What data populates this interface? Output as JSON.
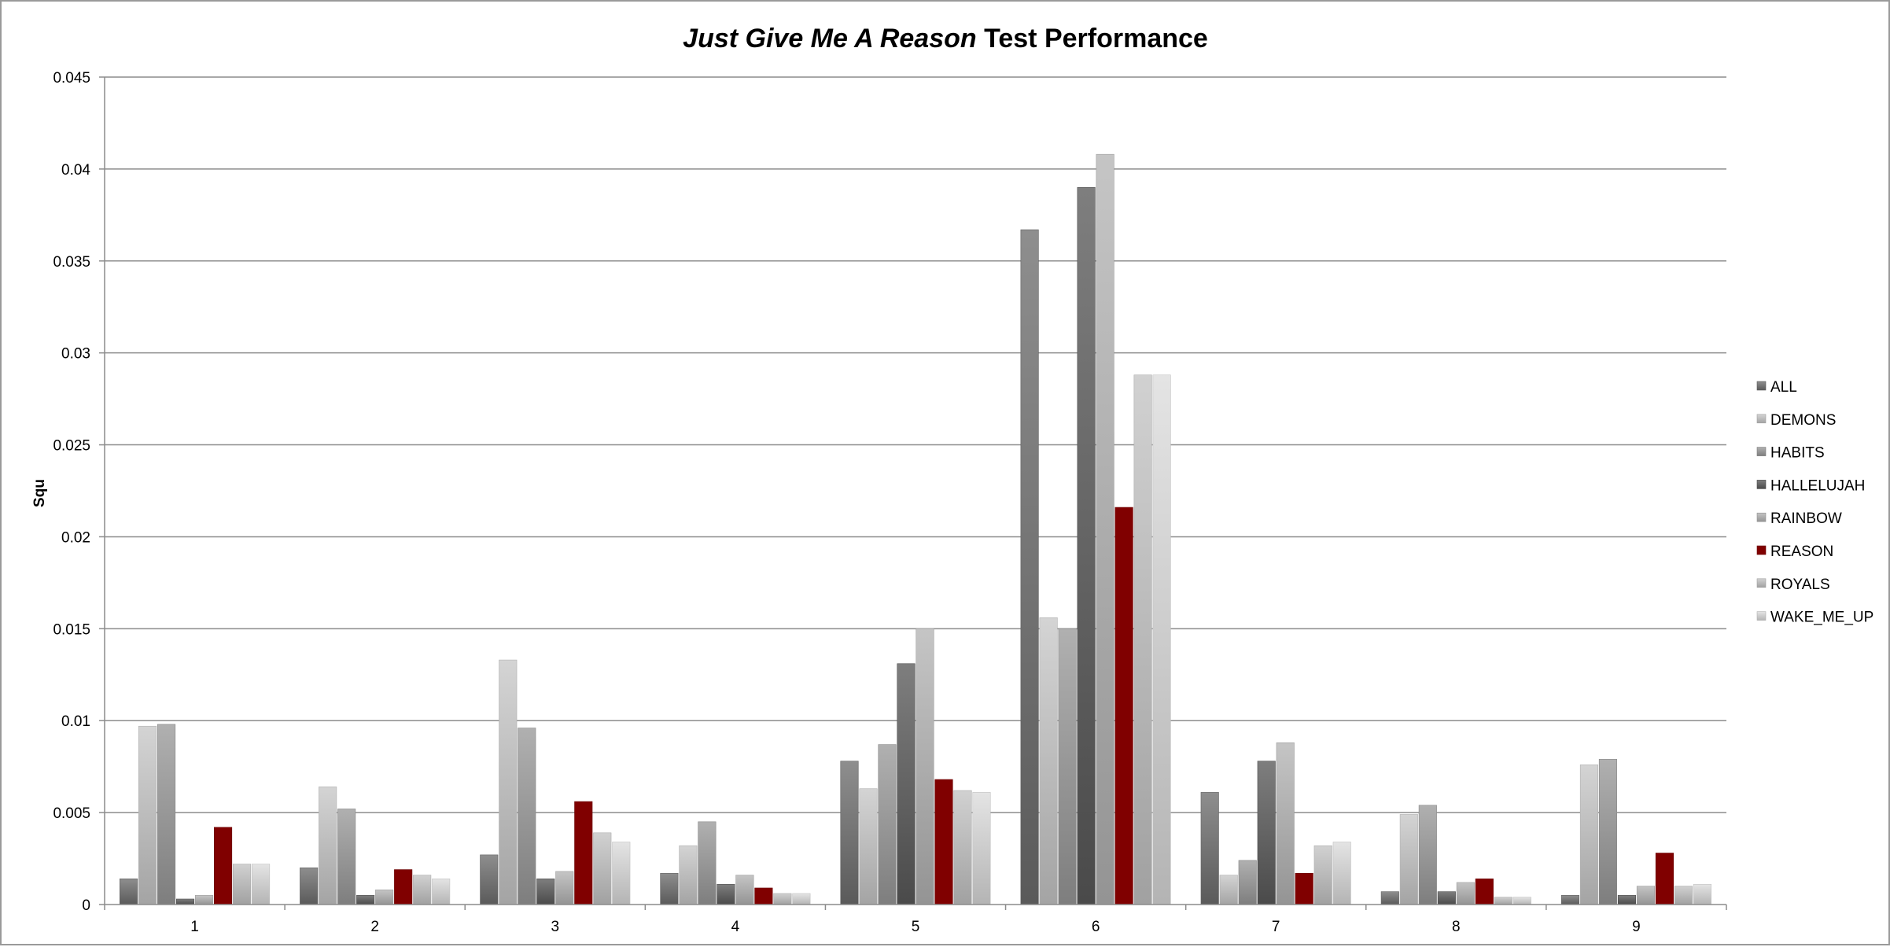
{
  "chart_data": {
    "type": "bar",
    "title_italic": "Just Give Me A Reason",
    "title_rest": " Test Performance",
    "xlabel": "",
    "ylabel": "Squ",
    "ylim": [
      0,
      0.045
    ],
    "y_ticks": [
      "0",
      "0.005",
      "0.01",
      "0.015",
      "0.02",
      "0.025",
      "0.03",
      "0.035",
      "0.04",
      "0.045"
    ],
    "categories": [
      "1",
      "2",
      "3",
      "4",
      "5",
      "6",
      "7",
      "8",
      "9"
    ],
    "grid": true,
    "legend_position": "right",
    "series": [
      {
        "name": "ALL",
        "color": "#6e6e6e",
        "values": [
          0.0014,
          0.002,
          0.0027,
          0.0017,
          0.0078,
          0.0367,
          0.0061,
          0.0007,
          0.0005
        ]
      },
      {
        "name": "DEMONS",
        "color": "#c8c8c8",
        "values": [
          0.0097,
          0.0064,
          0.0133,
          0.0032,
          0.0063,
          0.0156,
          0.0016,
          0.0049,
          0.0076
        ]
      },
      {
        "name": "HABITS",
        "color": "#9a9a9a",
        "values": [
          0.0098,
          0.0052,
          0.0096,
          0.0045,
          0.0087,
          0.015,
          0.0024,
          0.0054,
          0.0079
        ]
      },
      {
        "name": "HALLELUJAH",
        "color": "#5a5a5a",
        "values": [
          0.0003,
          0.0005,
          0.0014,
          0.0011,
          0.0131,
          0.039,
          0.0078,
          0.0007,
          0.0005
        ]
      },
      {
        "name": "RAINBOW",
        "color": "#b4b4b4",
        "values": [
          0.0005,
          0.0008,
          0.0018,
          0.0016,
          0.015,
          0.0408,
          0.0088,
          0.0012,
          0.001
        ]
      },
      {
        "name": "REASON",
        "color": "#800000",
        "values": [
          0.0042,
          0.0019,
          0.0056,
          0.0009,
          0.0068,
          0.0216,
          0.0017,
          0.0014,
          0.0028
        ]
      },
      {
        "name": "ROYALS",
        "color": "#c4c4c4",
        "values": [
          0.0022,
          0.0016,
          0.0039,
          0.0006,
          0.0062,
          0.0288,
          0.0032,
          0.0004,
          0.001
        ]
      },
      {
        "name": "WAKE_ME_UP",
        "color": "#dcdcdc",
        "values": [
          0.0022,
          0.0014,
          0.0034,
          0.0006,
          0.0061,
          0.0288,
          0.0034,
          0.0004,
          0.0011
        ]
      }
    ]
  }
}
